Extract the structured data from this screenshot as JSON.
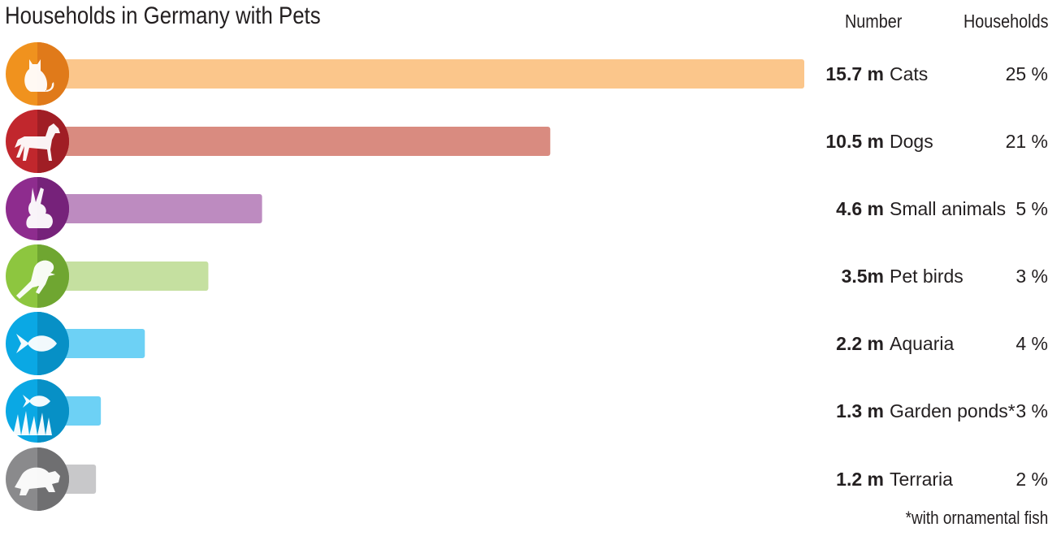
{
  "title": "Households in Germany with Pets",
  "columns": {
    "number": "Number",
    "households": "Households"
  },
  "footnote": "*with ornamental fish",
  "colors": {
    "cats": {
      "icon": "#f0921e",
      "icon_dark": "#e07a1a",
      "bar": "#fbc68b"
    },
    "dogs": {
      "icon": "#c1272d",
      "icon_dark": "#a01e25",
      "bar": "#d98b80"
    },
    "small_animals": {
      "icon": "#8e2c8e",
      "icon_dark": "#76227a",
      "bar": "#bd8bc0"
    },
    "pet_birds": {
      "icon": "#8dc63f",
      "icon_dark": "#6fa631",
      "bar": "#c5e0a0"
    },
    "aquaria": {
      "icon": "#0aa8e4",
      "icon_dark": "#0790c6",
      "bar": "#6dd1f5"
    },
    "garden_ponds": {
      "icon": "#0aa8e4",
      "icon_dark": "#0790c6",
      "bar": "#6dd1f5"
    },
    "terraria": {
      "icon": "#8a8a8c",
      "icon_dark": "#6f6f71",
      "bar": "#c8c8ca"
    }
  },
  "chart_data": {
    "type": "bar",
    "orientation": "horizontal",
    "title": "Households in Germany with Pets",
    "categories": [
      "Cats",
      "Dogs",
      "Small animals",
      "Pet birds",
      "Aquaria",
      "Garden ponds*",
      "Terraria"
    ],
    "icons": [
      "cat-icon",
      "dog-icon",
      "rabbit-icon",
      "parrot-icon",
      "fish-icon",
      "pond-fish-icon",
      "turtle-icon"
    ],
    "values": [
      15.7,
      10.5,
      4.6,
      3.5,
      2.2,
      1.3,
      1.2
    ],
    "value_labels": [
      "15.7 m",
      "10.5  m",
      "4.6 m",
      "3.5m",
      "2.2 m",
      "1.3 m",
      "1.2 m"
    ],
    "households": [
      "25 %",
      "21 %",
      "5 %",
      "3 %",
      "4 %",
      "3 %",
      "2 %"
    ],
    "color_keys": [
      "cats",
      "dogs",
      "small_animals",
      "pet_birds",
      "aquaria",
      "garden_ponds",
      "terraria"
    ],
    "xlim": [
      0,
      15.7
    ],
    "grid": false,
    "legend": "none"
  }
}
